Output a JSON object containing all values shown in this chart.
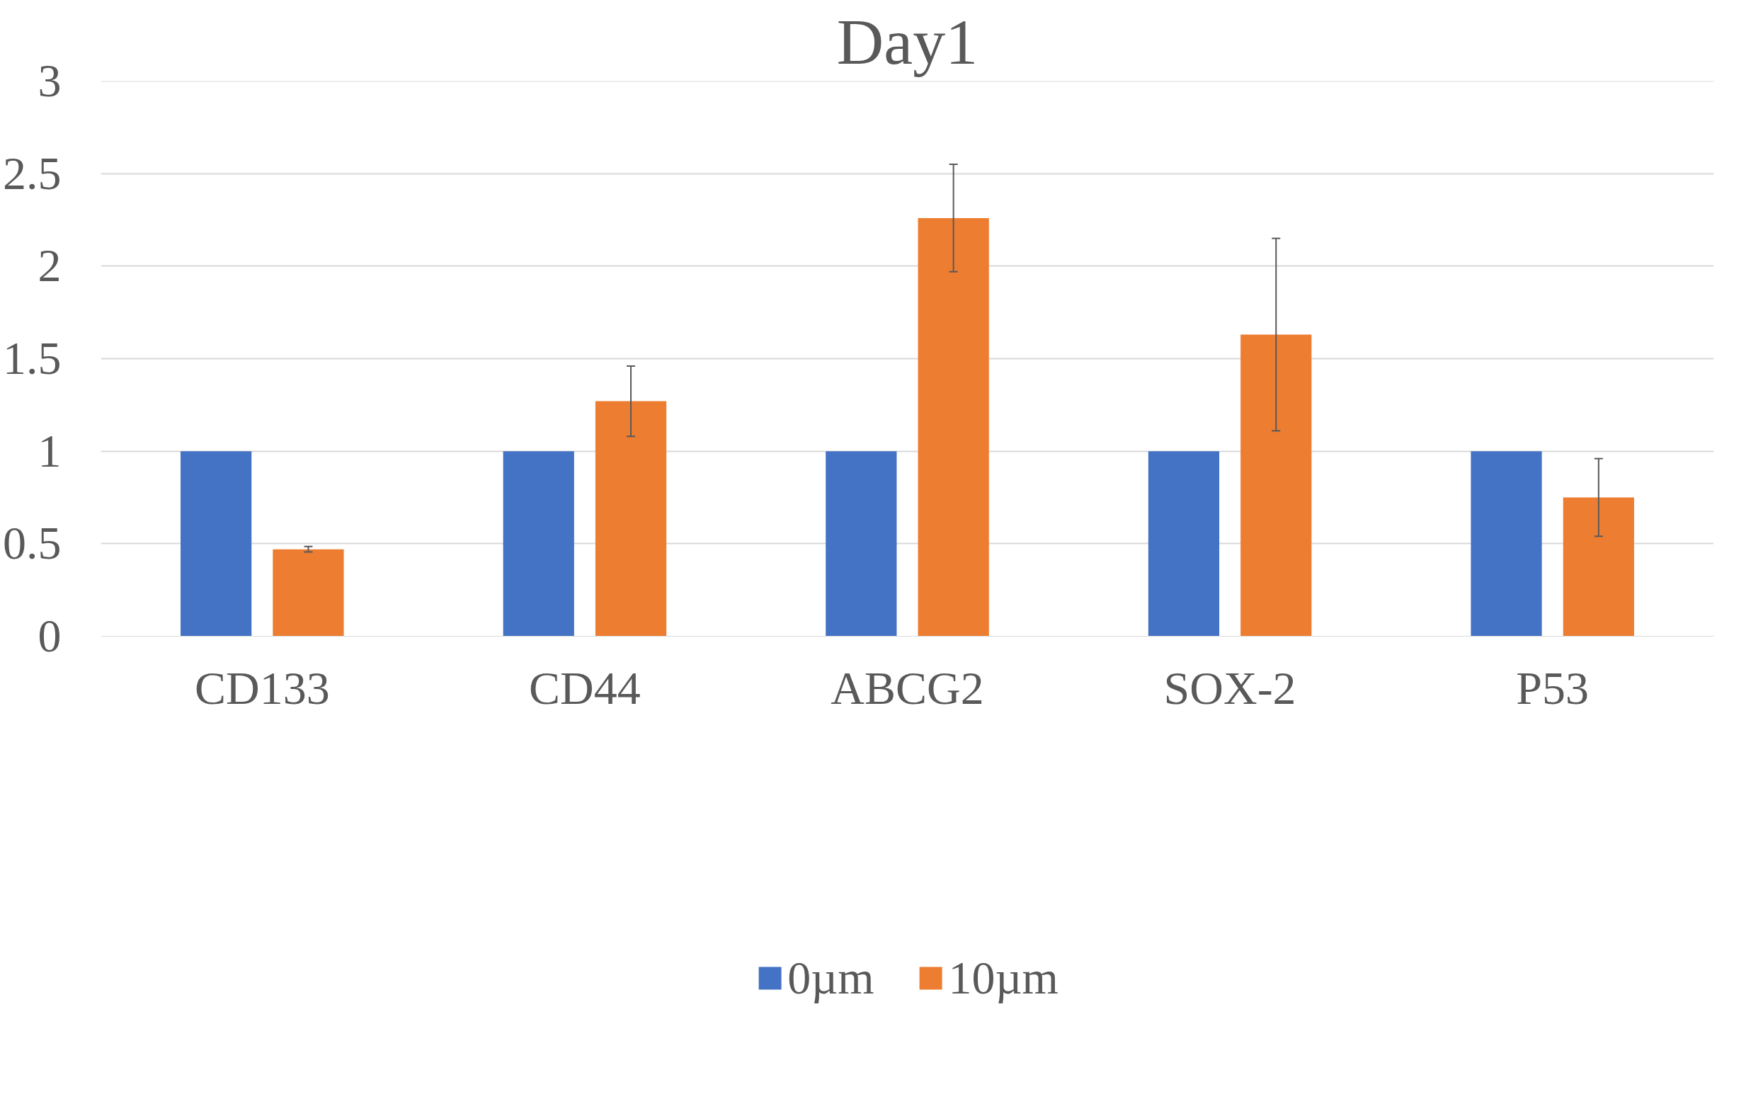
{
  "chart_data": {
    "type": "bar",
    "title": "Day1",
    "categories": [
      "CD133",
      "CD44",
      "ABCG2",
      "SOX-2",
      "P53"
    ],
    "series": [
      {
        "name": "0µm",
        "color": "#4472c4",
        "values": [
          1,
          1,
          1,
          1,
          1
        ]
      },
      {
        "name": "10µm",
        "color": "#ed7d31",
        "values": [
          0.47,
          1.27,
          2.26,
          1.63,
          0.75
        ],
        "errors": [
          0.015,
          0.19,
          0.29,
          0.52,
          0.21
        ]
      }
    ],
    "ylim": [
      0,
      3
    ],
    "yticks": [
      0,
      0.5,
      1,
      1.5,
      2,
      2.5,
      3
    ],
    "grid": "y",
    "legend": "bottom"
  }
}
